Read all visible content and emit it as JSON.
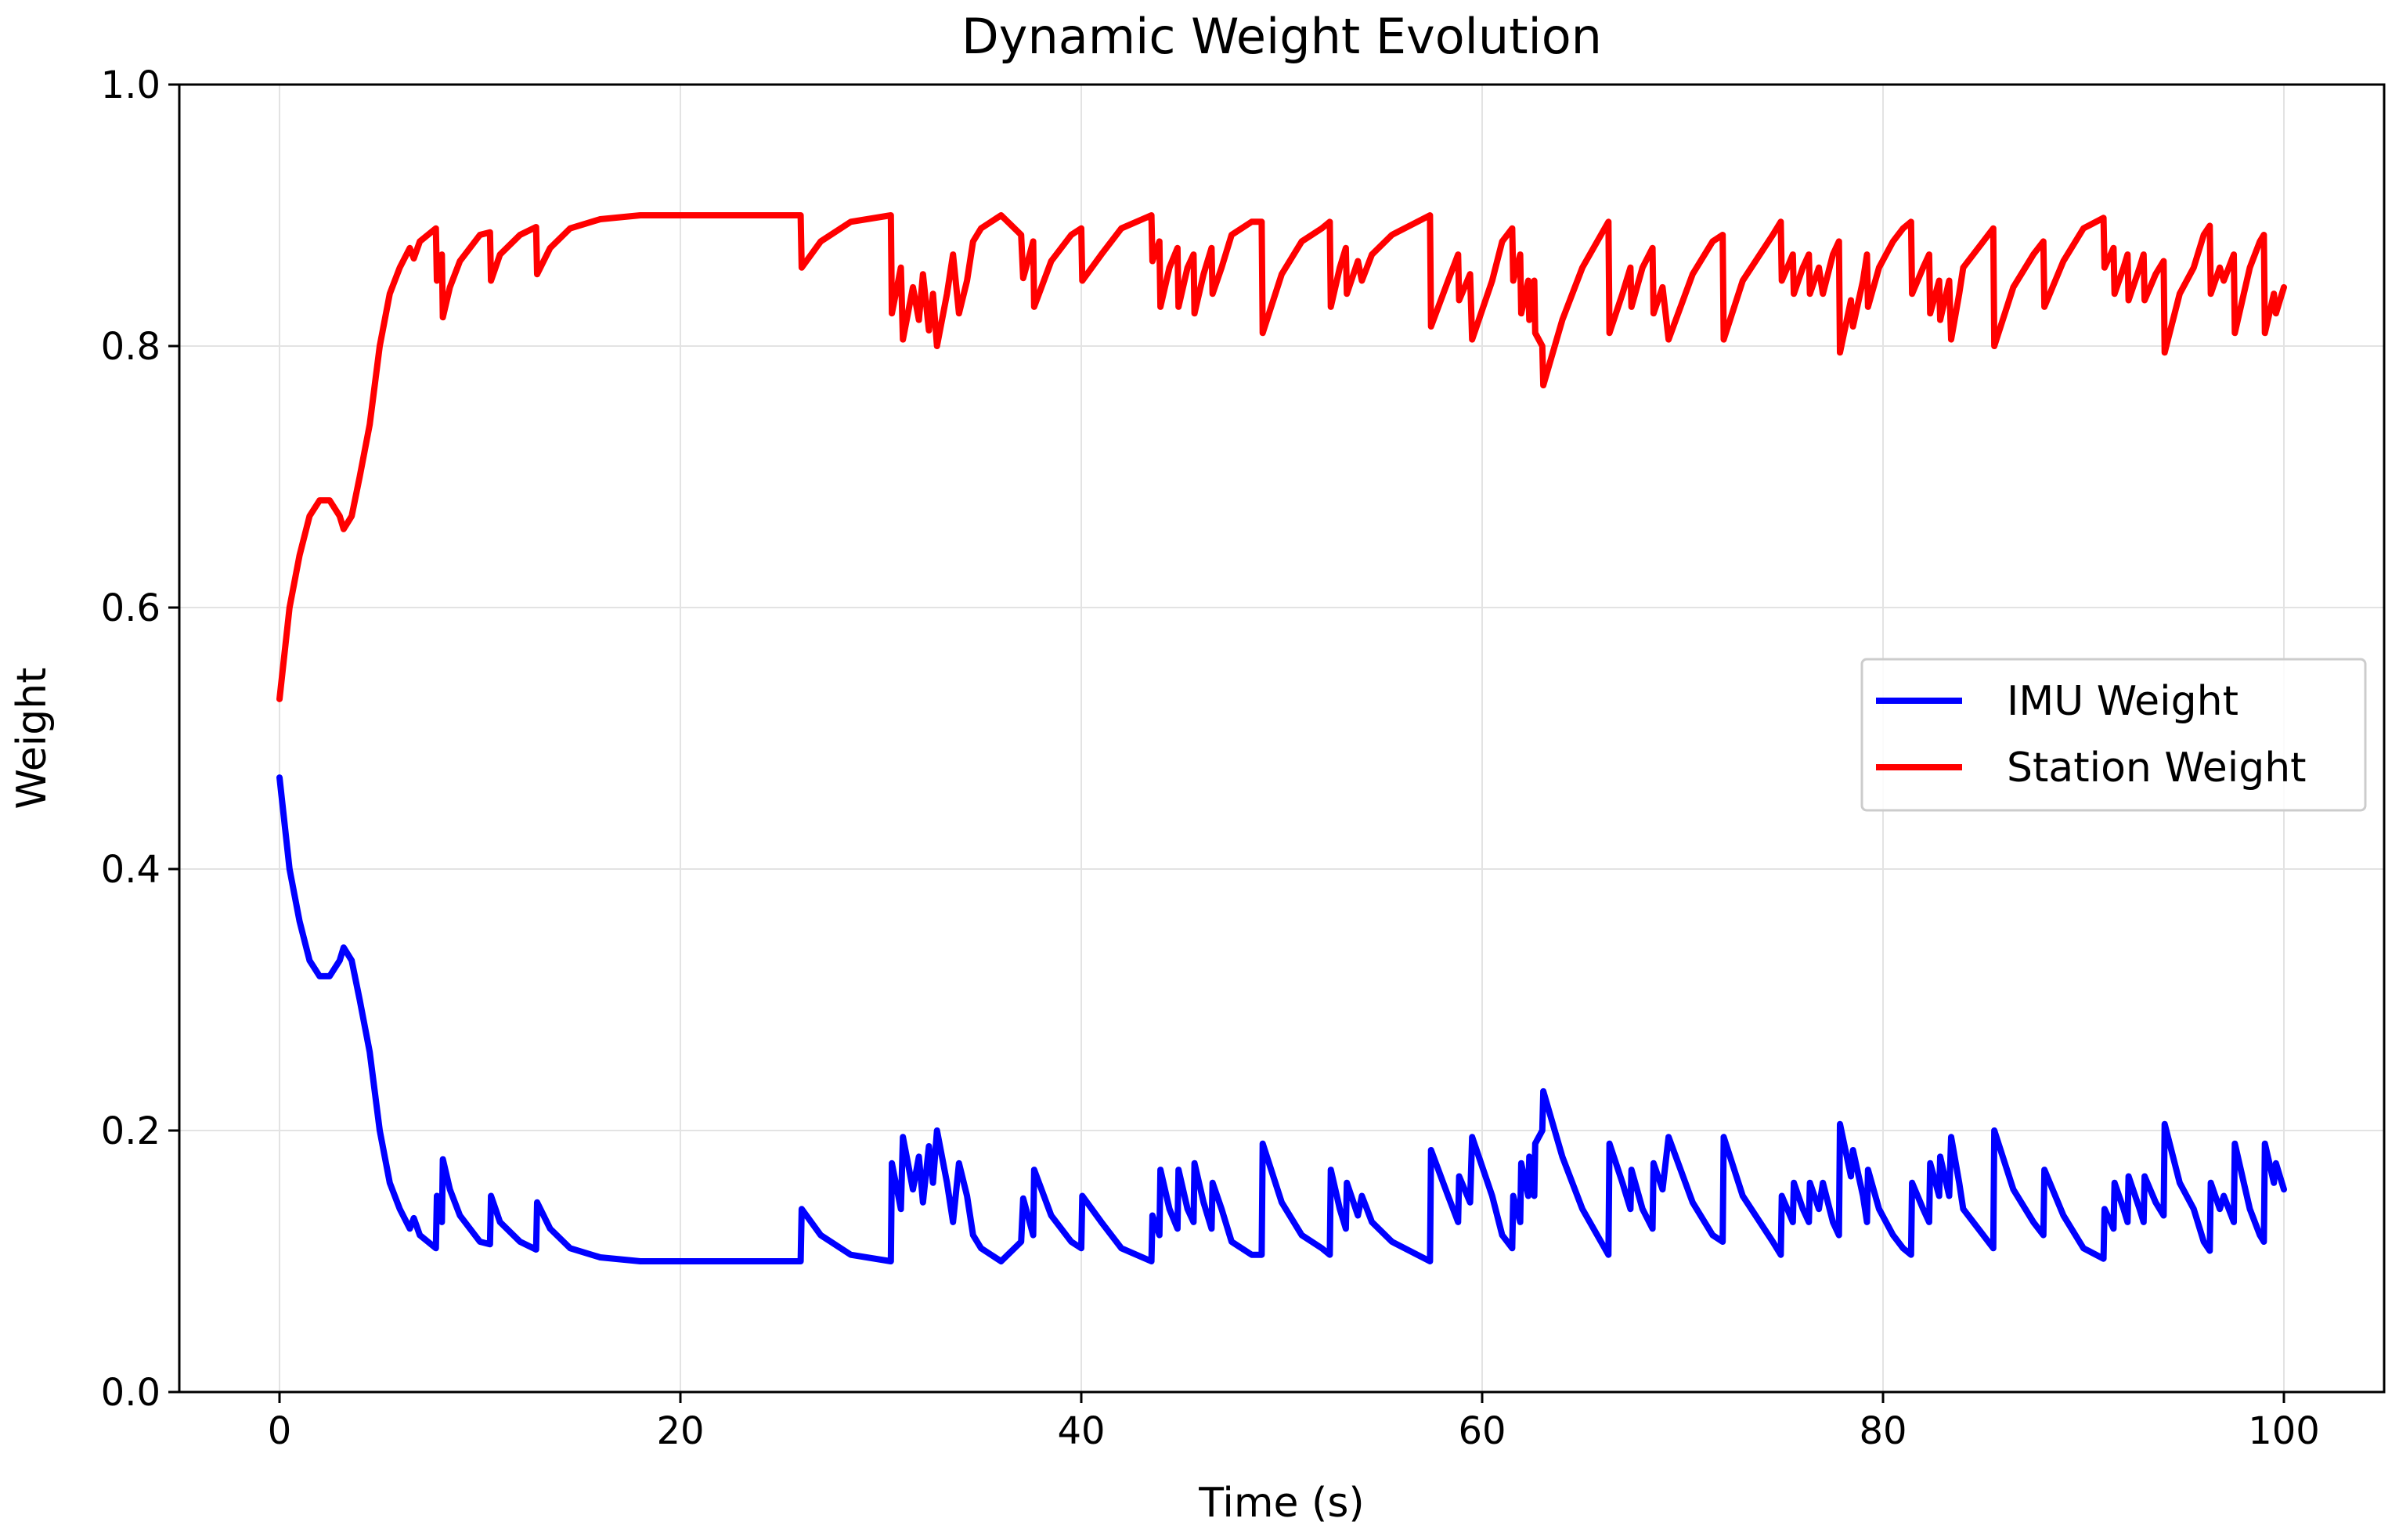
{
  "chart_data": {
    "type": "line",
    "title": "Dynamic Weight Evolution",
    "xlabel": "Time (s)",
    "ylabel": "Weight",
    "xlim": [
      -5,
      105
    ],
    "ylim": [
      0.0,
      1.0
    ],
    "xticks": [
      0,
      20,
      40,
      60,
      80,
      100
    ],
    "xtick_labels": [
      "0",
      "20",
      "40",
      "60",
      "80",
      "100"
    ],
    "yticks": [
      0.0,
      0.2,
      0.4,
      0.6,
      0.8,
      1.0
    ],
    "ytick_labels": [
      "0.0",
      "0.2",
      "0.4",
      "0.6",
      "0.8",
      "1.0"
    ],
    "grid": true,
    "legend_position": "center-right",
    "series": [
      {
        "name": "IMU Weight",
        "color": "#0000ff",
        "points": [
          [
            0,
            0.47
          ],
          [
            0.5,
            0.4
          ],
          [
            1.0,
            0.36
          ],
          [
            1.5,
            0.33
          ],
          [
            2.0,
            0.318
          ],
          [
            2.5,
            0.318
          ],
          [
            3.0,
            0.33
          ],
          [
            3.2,
            0.34
          ],
          [
            3.6,
            0.33
          ],
          [
            4.0,
            0.3
          ],
          [
            4.5,
            0.26
          ],
          [
            5.0,
            0.2
          ],
          [
            5.5,
            0.16
          ],
          [
            6.0,
            0.14
          ],
          [
            6.5,
            0.125
          ],
          [
            6.7,
            0.133
          ],
          [
            7.0,
            0.12
          ],
          [
            7.8,
            0.11
          ],
          [
            7.85,
            0.15
          ],
          [
            8.0,
            0.14
          ],
          [
            8.1,
            0.13
          ],
          [
            8.15,
            0.178
          ],
          [
            8.5,
            0.155
          ],
          [
            9.0,
            0.135
          ],
          [
            10.0,
            0.115
          ],
          [
            10.5,
            0.113
          ],
          [
            10.55,
            0.15
          ],
          [
            11.0,
            0.13
          ],
          [
            12.0,
            0.115
          ],
          [
            12.8,
            0.109
          ],
          [
            12.85,
            0.145
          ],
          [
            13.5,
            0.125
          ],
          [
            14.5,
            0.11
          ],
          [
            16,
            0.103
          ],
          [
            18,
            0.1
          ],
          [
            22,
            0.1
          ],
          [
            26.0,
            0.1
          ],
          [
            26.05,
            0.14
          ],
          [
            27,
            0.12
          ],
          [
            28.5,
            0.105
          ],
          [
            30.5,
            0.1
          ],
          [
            30.55,
            0.175
          ],
          [
            31.0,
            0.14
          ],
          [
            31.1,
            0.195
          ],
          [
            31.6,
            0.155
          ],
          [
            31.9,
            0.18
          ],
          [
            32.1,
            0.145
          ],
          [
            32.4,
            0.188
          ],
          [
            32.6,
            0.16
          ],
          [
            32.8,
            0.2
          ],
          [
            33.3,
            0.16
          ],
          [
            33.6,
            0.13
          ],
          [
            33.9,
            0.175
          ],
          [
            34.3,
            0.15
          ],
          [
            34.6,
            0.12
          ],
          [
            35.0,
            0.11
          ],
          [
            35.5,
            0.105
          ],
          [
            36.0,
            0.1
          ],
          [
            37.0,
            0.115
          ],
          [
            37.1,
            0.148
          ],
          [
            37.6,
            0.12
          ],
          [
            37.65,
            0.17
          ],
          [
            38.5,
            0.135
          ],
          [
            39.5,
            0.115
          ],
          [
            40.0,
            0.11
          ],
          [
            40.05,
            0.15
          ],
          [
            41,
            0.13
          ],
          [
            42,
            0.11
          ],
          [
            43.5,
            0.1
          ],
          [
            43.55,
            0.135
          ],
          [
            43.9,
            0.12
          ],
          [
            43.95,
            0.17
          ],
          [
            44.4,
            0.14
          ],
          [
            44.8,
            0.125
          ],
          [
            44.85,
            0.17
          ],
          [
            45.3,
            0.14
          ],
          [
            45.6,
            0.13
          ],
          [
            45.65,
            0.175
          ],
          [
            46.1,
            0.145
          ],
          [
            46.5,
            0.125
          ],
          [
            46.55,
            0.16
          ],
          [
            47.0,
            0.14
          ],
          [
            47.5,
            0.115
          ],
          [
            48.5,
            0.105
          ],
          [
            49.0,
            0.105
          ],
          [
            49.05,
            0.19
          ],
          [
            50.0,
            0.145
          ],
          [
            51.0,
            0.12
          ],
          [
            52.0,
            0.11
          ],
          [
            52.4,
            0.105
          ],
          [
            52.45,
            0.17
          ],
          [
            52.9,
            0.14
          ],
          [
            53.2,
            0.125
          ],
          [
            53.25,
            0.16
          ],
          [
            53.8,
            0.135
          ],
          [
            54.0,
            0.15
          ],
          [
            54.5,
            0.13
          ],
          [
            55.5,
            0.115
          ],
          [
            57.4,
            0.1
          ],
          [
            57.45,
            0.185
          ],
          [
            58.3,
            0.15
          ],
          [
            58.8,
            0.13
          ],
          [
            58.85,
            0.165
          ],
          [
            59.4,
            0.145
          ],
          [
            59.5,
            0.195
          ],
          [
            60.5,
            0.15
          ],
          [
            61.0,
            0.12
          ],
          [
            61.5,
            0.11
          ],
          [
            61.55,
            0.15
          ],
          [
            61.9,
            0.13
          ],
          [
            61.95,
            0.175
          ],
          [
            62.3,
            0.15
          ],
          [
            62.35,
            0.18
          ],
          [
            62.6,
            0.15
          ],
          [
            62.65,
            0.19
          ],
          [
            63.0,
            0.2
          ],
          [
            63.05,
            0.23
          ],
          [
            64.0,
            0.18
          ],
          [
            65.0,
            0.14
          ],
          [
            66.3,
            0.105
          ],
          [
            66.35,
            0.19
          ],
          [
            67.0,
            0.16
          ],
          [
            67.4,
            0.14
          ],
          [
            67.45,
            0.17
          ],
          [
            68.0,
            0.14
          ],
          [
            68.5,
            0.125
          ],
          [
            68.55,
            0.175
          ],
          [
            69.0,
            0.155
          ],
          [
            69.3,
            0.195
          ],
          [
            70.5,
            0.145
          ],
          [
            71.5,
            0.12
          ],
          [
            72.0,
            0.115
          ],
          [
            72.05,
            0.195
          ],
          [
            73.0,
            0.15
          ],
          [
            74.5,
            0.115
          ],
          [
            74.9,
            0.105
          ],
          [
            74.95,
            0.15
          ],
          [
            75.5,
            0.13
          ],
          [
            75.55,
            0.16
          ],
          [
            76.0,
            0.14
          ],
          [
            76.3,
            0.13
          ],
          [
            76.35,
            0.16
          ],
          [
            76.8,
            0.14
          ],
          [
            77.0,
            0.16
          ],
          [
            77.5,
            0.13
          ],
          [
            77.8,
            0.12
          ],
          [
            77.85,
            0.205
          ],
          [
            78.4,
            0.165
          ],
          [
            78.5,
            0.185
          ],
          [
            79.0,
            0.15
          ],
          [
            79.2,
            0.13
          ],
          [
            79.25,
            0.17
          ],
          [
            79.8,
            0.14
          ],
          [
            80.5,
            0.12
          ],
          [
            81.0,
            0.11
          ],
          [
            81.4,
            0.105
          ],
          [
            81.45,
            0.16
          ],
          [
            82.0,
            0.14
          ],
          [
            82.3,
            0.13
          ],
          [
            82.35,
            0.175
          ],
          [
            82.8,
            0.15
          ],
          [
            82.85,
            0.18
          ],
          [
            83.3,
            0.15
          ],
          [
            83.4,
            0.195
          ],
          [
            83.8,
            0.16
          ],
          [
            84.0,
            0.14
          ],
          [
            85.0,
            0.12
          ],
          [
            85.5,
            0.11
          ],
          [
            85.55,
            0.2
          ],
          [
            86.5,
            0.155
          ],
          [
            87.5,
            0.13
          ],
          [
            88.0,
            0.12
          ],
          [
            88.05,
            0.17
          ],
          [
            89.0,
            0.135
          ],
          [
            90.0,
            0.11
          ],
          [
            91.0,
            0.102
          ],
          [
            91.05,
            0.14
          ],
          [
            91.5,
            0.125
          ],
          [
            91.55,
            0.16
          ],
          [
            92.0,
            0.14
          ],
          [
            92.2,
            0.13
          ],
          [
            92.25,
            0.165
          ],
          [
            92.8,
            0.14
          ],
          [
            93.0,
            0.13
          ],
          [
            93.05,
            0.165
          ],
          [
            93.6,
            0.145
          ],
          [
            94.0,
            0.135
          ],
          [
            94.05,
            0.205
          ],
          [
            94.8,
            0.16
          ],
          [
            95.5,
            0.14
          ],
          [
            96.0,
            0.115
          ],
          [
            96.3,
            0.108
          ],
          [
            96.35,
            0.16
          ],
          [
            96.8,
            0.14
          ],
          [
            97.0,
            0.15
          ],
          [
            97.5,
            0.13
          ],
          [
            97.55,
            0.19
          ],
          [
            98.0,
            0.16
          ],
          [
            98.3,
            0.14
          ],
          [
            98.8,
            0.12
          ],
          [
            99.0,
            0.115
          ],
          [
            99.05,
            0.19
          ],
          [
            99.5,
            0.16
          ],
          [
            99.6,
            0.175
          ],
          [
            100.0,
            0.155
          ]
        ]
      },
      {
        "name": "Station Weight",
        "color": "#ff0000",
        "points": []
      }
    ]
  }
}
